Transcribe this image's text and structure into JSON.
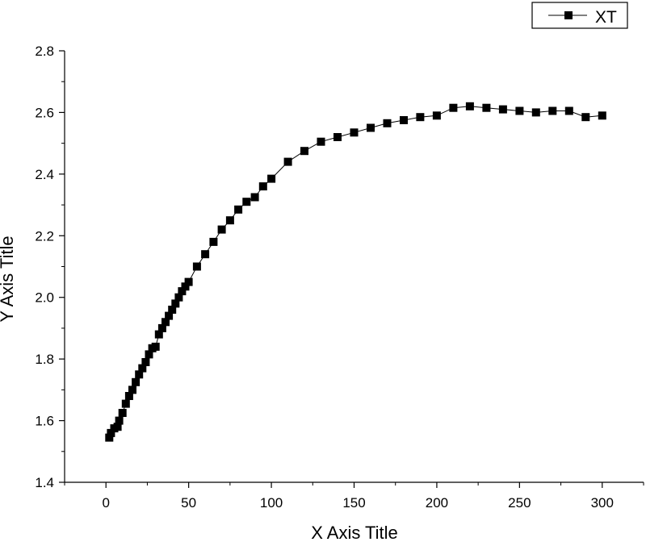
{
  "chart_data": {
    "type": "scatter",
    "xlabel": "X Axis Title",
    "ylabel": "Y Axis Title",
    "xlim": [
      -25,
      325
    ],
    "ylim": [
      1.4,
      2.8
    ],
    "x_ticks": [
      0,
      50,
      100,
      150,
      200,
      250,
      300
    ],
    "y_ticks": [
      1.4,
      1.6,
      1.8,
      2.0,
      2.2,
      2.4,
      2.6,
      2.8
    ],
    "x_tick_labels": [
      "0",
      "50",
      "100",
      "150",
      "200",
      "250",
      "300"
    ],
    "y_tick_labels": [
      "1.4",
      "1.6",
      "1.8",
      "2.0",
      "2.2",
      "2.4",
      "2.6",
      "2.8"
    ],
    "grid": false,
    "legend_position": "top-right",
    "series": [
      {
        "name": "XT",
        "marker": "square",
        "line": true,
        "color": "#000000",
        "x": [
          2,
          3,
          5,
          7,
          8,
          10,
          12,
          14,
          16,
          18,
          20,
          22,
          24,
          26,
          28,
          30,
          32,
          34,
          36,
          38,
          40,
          42,
          44,
          46,
          48,
          50,
          55,
          60,
          65,
          70,
          75,
          80,
          85,
          90,
          95,
          100,
          110,
          120,
          130,
          140,
          150,
          160,
          170,
          180,
          190,
          200,
          210,
          220,
          230,
          240,
          250,
          260,
          270,
          280,
          290,
          300
        ],
        "y": [
          1.545,
          1.56,
          1.575,
          1.58,
          1.6,
          1.625,
          1.655,
          1.68,
          1.7,
          1.725,
          1.75,
          1.77,
          1.79,
          1.815,
          1.835,
          1.84,
          1.88,
          1.9,
          1.92,
          1.94,
          1.96,
          1.98,
          2.0,
          2.02,
          2.035,
          2.05,
          2.1,
          2.14,
          2.18,
          2.22,
          2.25,
          2.285,
          2.31,
          2.325,
          2.36,
          2.385,
          2.44,
          2.475,
          2.505,
          2.52,
          2.535,
          2.55,
          2.565,
          2.575,
          2.585,
          2.59,
          2.615,
          2.62,
          2.615,
          2.61,
          2.605,
          2.6,
          2.605,
          2.605,
          2.585,
          2.59
        ]
      }
    ]
  }
}
